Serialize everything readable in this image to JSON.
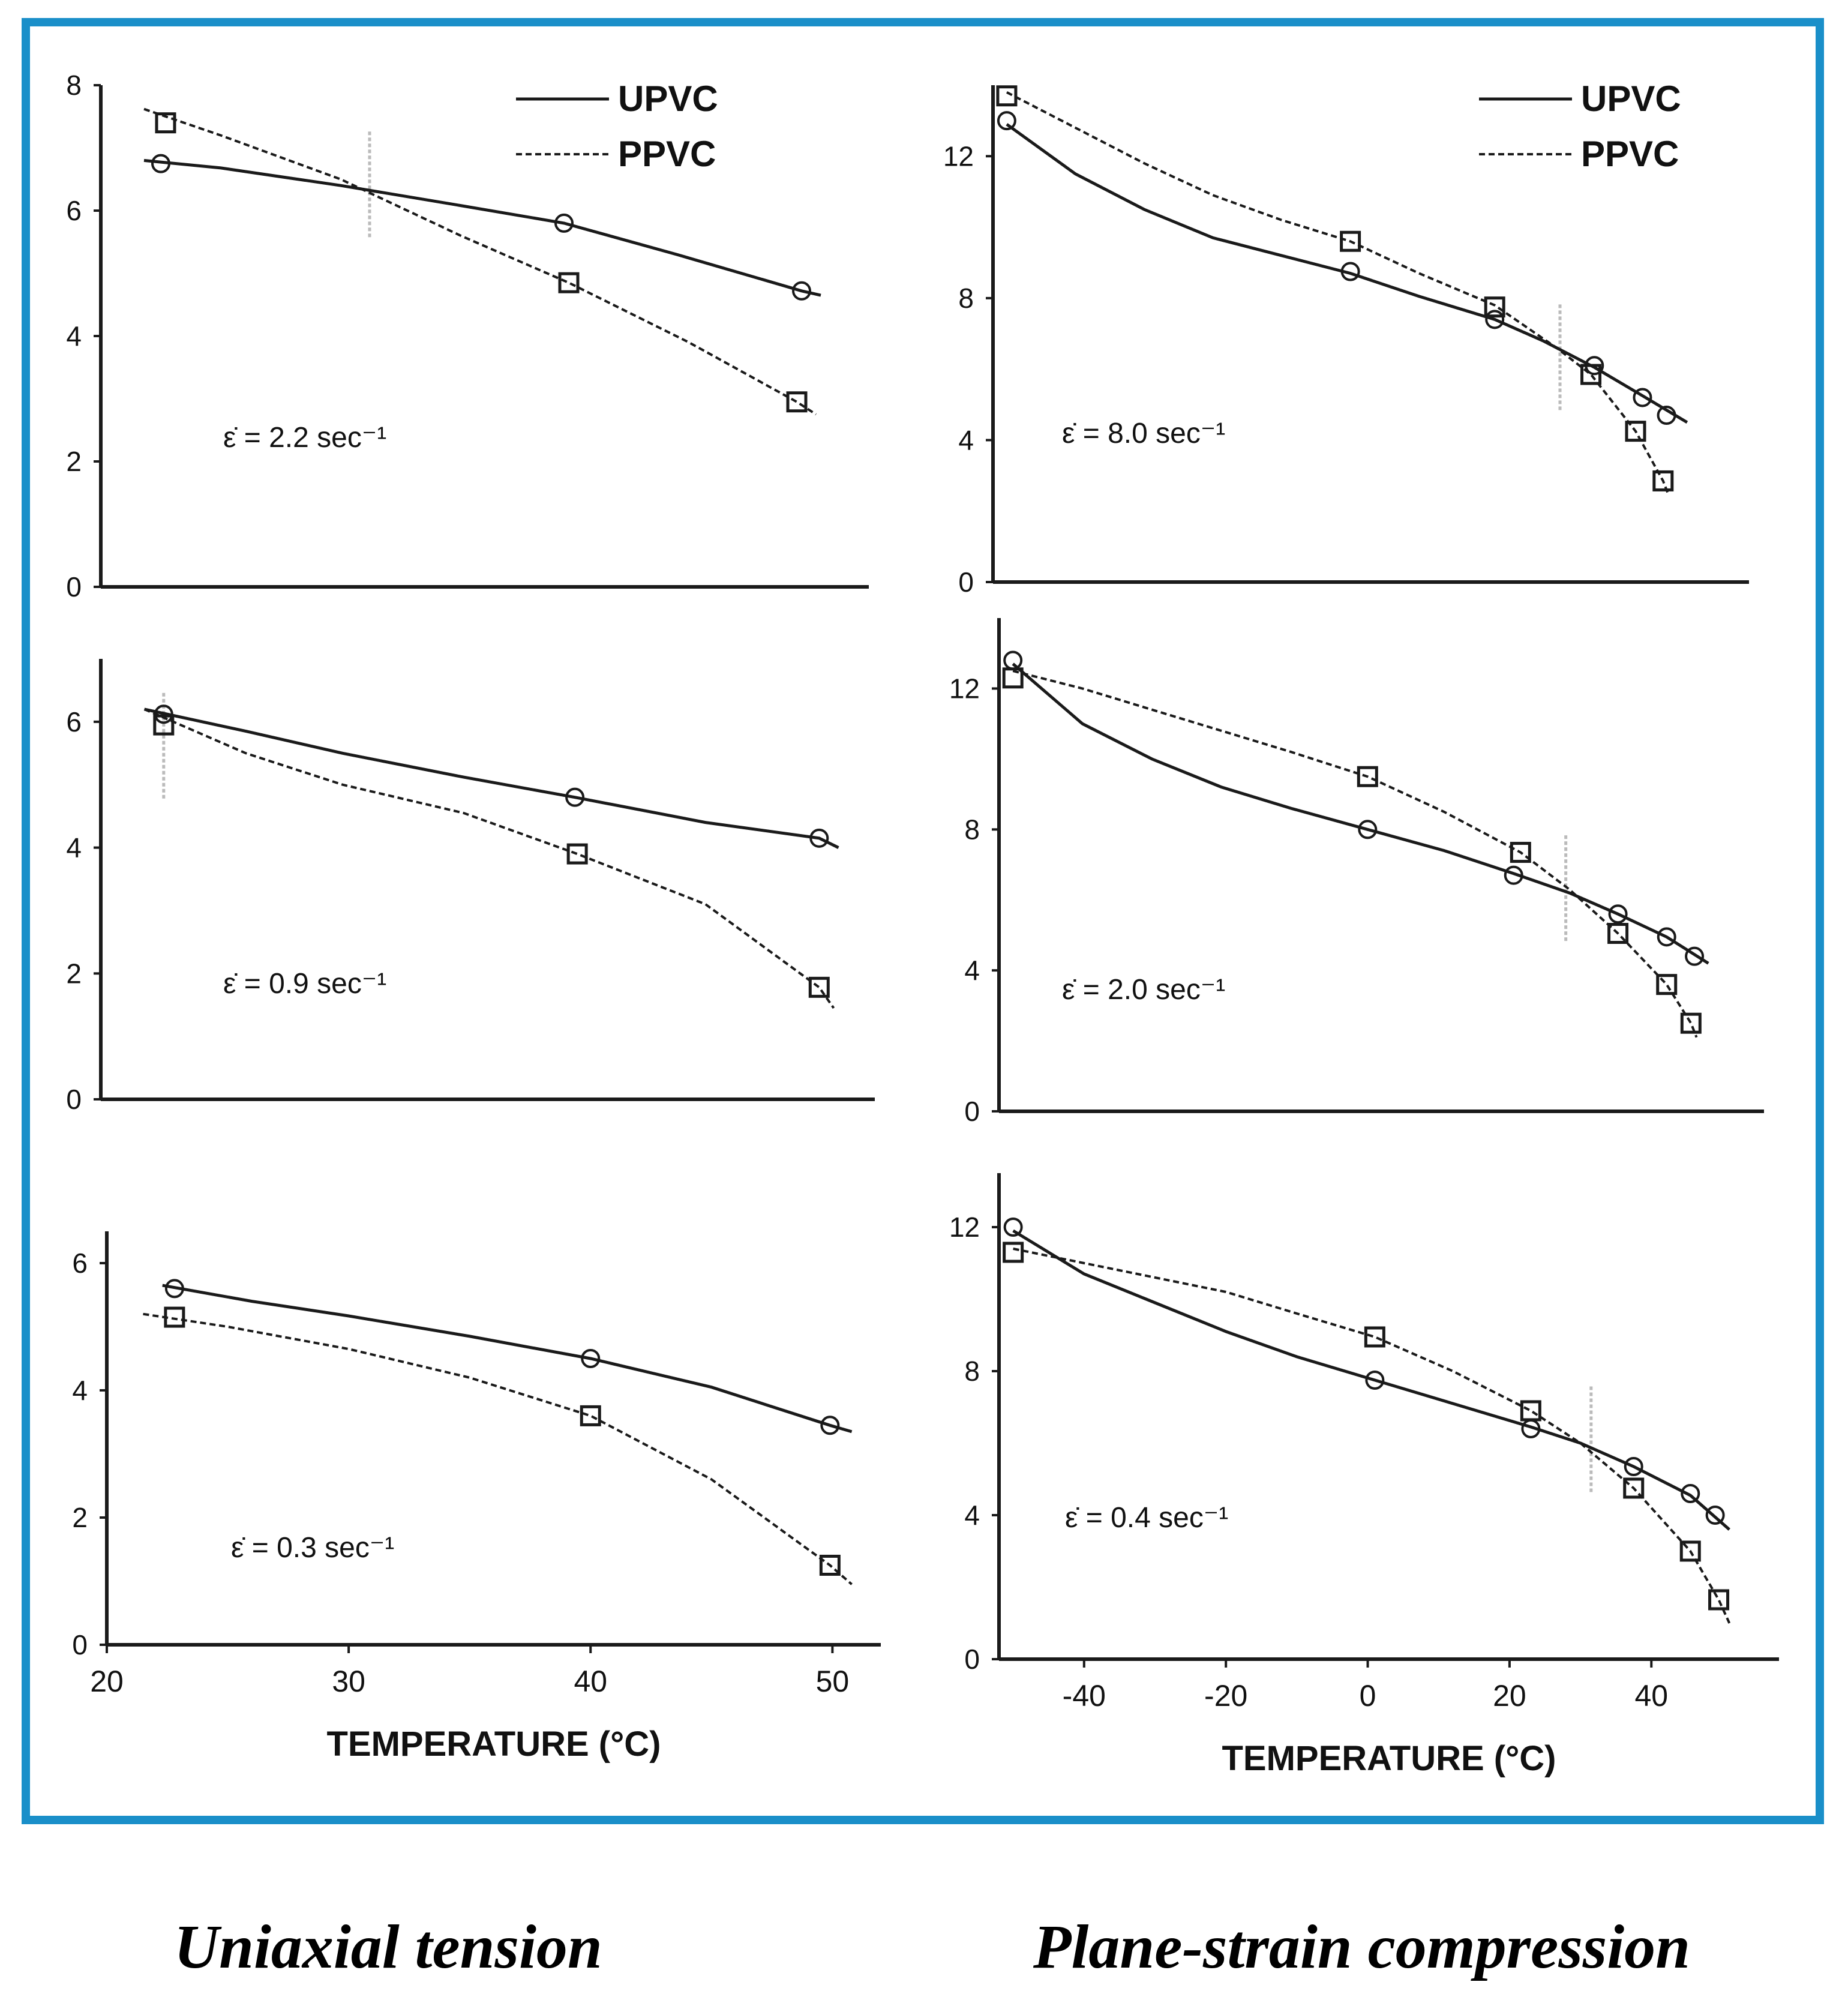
{
  "colors": {
    "border": "#1a8fc9",
    "line": "#1a1a1a",
    "divider": "#bbbbbb"
  },
  "legend": {
    "solid_label": "UPVC",
    "dashed_label": "PPVC"
  },
  "captions": {
    "left": "Uniaxial tension",
    "right": "Plane-strain compression"
  },
  "chart_data": [
    {
      "type": "line",
      "panel": "uniaxial-tension-2.2",
      "rate_label": "ε̇ = 2.2 sec⁻¹",
      "xlim": [
        20,
        52
      ],
      "ylim": [
        0,
        8
      ],
      "yticks": [
        0,
        2,
        4,
        6,
        8
      ],
      "xticks": [],
      "xlabel": "",
      "ylabel": "",
      "divider_x": 31.2,
      "series": [
        {
          "name": "UPVC",
          "style": "solid",
          "marker": "circle",
          "x": [
            22.5,
            39.3,
            49.2
          ],
          "y": [
            6.75,
            5.8,
            4.72
          ],
          "curve": [
            [
              21.8,
              6.8
            ],
            [
              25,
              6.68
            ],
            [
              30,
              6.4
            ],
            [
              35,
              6.08
            ],
            [
              39.3,
              5.8
            ],
            [
              44,
              5.3
            ],
            [
              49.2,
              4.72
            ],
            [
              50,
              4.65
            ]
          ]
        },
        {
          "name": "PPVC",
          "style": "dashed",
          "marker": "square",
          "x": [
            22.7,
            39.5,
            49
          ],
          "y": [
            7.4,
            4.85,
            2.95
          ],
          "curve": [
            [
              21.8,
              7.62
            ],
            [
              25,
              7.2
            ],
            [
              30,
              6.5
            ],
            [
              35,
              5.6
            ],
            [
              39.5,
              4.85
            ],
            [
              44.5,
              3.9
            ],
            [
              49,
              2.95
            ],
            [
              49.8,
              2.75
            ]
          ]
        }
      ]
    },
    {
      "type": "line",
      "panel": "uniaxial-tension-0.9",
      "rate_label": "ε̇ = 0.9 sec⁻¹",
      "xlim": [
        20,
        52
      ],
      "ylim": [
        0,
        7
      ],
      "yticks": [
        0,
        2,
        4,
        6
      ],
      "xticks": [],
      "xlabel": "",
      "ylabel": "",
      "divider_x": 22.6,
      "series": [
        {
          "name": "UPVC",
          "style": "solid",
          "marker": "circle",
          "x": [
            22.6,
            39.6,
            49.7
          ],
          "y": [
            6.12,
            4.8,
            4.15
          ],
          "curve": [
            [
              21.8,
              6.2
            ],
            [
              26,
              5.85
            ],
            [
              30,
              5.5
            ],
            [
              35,
              5.12
            ],
            [
              39.6,
              4.8
            ],
            [
              45,
              4.4
            ],
            [
              49.7,
              4.15
            ],
            [
              50.5,
              4.0
            ]
          ]
        },
        {
          "name": "PPVC",
          "style": "dashed",
          "marker": "square",
          "x": [
            22.6,
            39.7,
            49.7
          ],
          "y": [
            5.95,
            3.9,
            1.78
          ],
          "curve": [
            [
              21.8,
              6.2
            ],
            [
              26,
              5.5
            ],
            [
              30,
              5.0
            ],
            [
              35,
              4.55
            ],
            [
              39.7,
              3.9
            ],
            [
              45,
              3.1
            ],
            [
              49.7,
              1.78
            ],
            [
              50.3,
              1.45
            ]
          ]
        }
      ]
    },
    {
      "type": "line",
      "panel": "uniaxial-tension-0.3",
      "rate_label": "ε̇ = 0.3 sec⁻¹",
      "xlim": [
        20,
        52
      ],
      "ylim": [
        0,
        6.5
      ],
      "yticks": [
        0,
        2,
        4,
        6
      ],
      "xticks": [
        20,
        30,
        40,
        50
      ],
      "xlabel": "TEMPERATURE (°C)",
      "ylabel": "",
      "series": [
        {
          "name": "UPVC",
          "style": "solid",
          "marker": "circle",
          "x": [
            22.8,
            40,
            49.9
          ],
          "y": [
            5.6,
            4.5,
            3.45
          ],
          "curve": [
            [
              22.3,
              5.65
            ],
            [
              26,
              5.4
            ],
            [
              30,
              5.17
            ],
            [
              35,
              4.85
            ],
            [
              40,
              4.5
            ],
            [
              45,
              4.05
            ],
            [
              49.9,
              3.45
            ],
            [
              50.8,
              3.35
            ]
          ]
        },
        {
          "name": "PPVC",
          "style": "dashed",
          "marker": "square",
          "x": [
            22.8,
            40,
            49.9
          ],
          "y": [
            5.15,
            3.6,
            1.25
          ],
          "curve": [
            [
              21.5,
              5.2
            ],
            [
              25,
              5.0
            ],
            [
              30,
              4.65
            ],
            [
              35,
              4.2
            ],
            [
              40,
              3.6
            ],
            [
              45,
              2.6
            ],
            [
              49.9,
              1.25
            ],
            [
              50.8,
              0.95
            ]
          ]
        }
      ]
    },
    {
      "type": "line",
      "panel": "plane-strain-compression-8.0",
      "rate_label": "ε̇ = 8.0 sec⁻¹",
      "xlim": [
        -52,
        58
      ],
      "ylim": [
        0,
        14
      ],
      "yticks": [
        0,
        4,
        8,
        12
      ],
      "xticks": [],
      "xlabel": "",
      "ylabel": "",
      "divider_x": 30.5,
      "series": [
        {
          "name": "UPVC",
          "style": "solid",
          "marker": "circle",
          "x": [
            -50,
            0,
            21,
            35.5,
            42.5,
            46
          ],
          "y": [
            13.0,
            8.75,
            7.4,
            6.1,
            5.2,
            4.7
          ],
          "curve": [
            [
              -50,
              12.9
            ],
            [
              -40,
              11.5
            ],
            [
              -30,
              10.5
            ],
            [
              -20,
              9.7
            ],
            [
              -10,
              9.2
            ],
            [
              0,
              8.7
            ],
            [
              10,
              8.05
            ],
            [
              21,
              7.4
            ],
            [
              28,
              6.8
            ],
            [
              35.5,
              6.05
            ],
            [
              42.5,
              5.25
            ],
            [
              49,
              4.5
            ]
          ]
        },
        {
          "name": "PPVC",
          "style": "dashed",
          "marker": "square",
          "x": [
            -50,
            0,
            21,
            35,
            41.5,
            45.5
          ],
          "y": [
            13.7,
            9.6,
            7.75,
            5.85,
            4.25,
            2.85
          ],
          "curve": [
            [
              -50,
              13.8
            ],
            [
              -40,
              12.8
            ],
            [
              -30,
              11.8
            ],
            [
              -20,
              10.9
            ],
            [
              -10,
              10.2
            ],
            [
              0,
              9.6
            ],
            [
              10,
              8.7
            ],
            [
              21,
              7.8
            ],
            [
              30,
              6.6
            ],
            [
              35,
              5.85
            ],
            [
              41.5,
              4.25
            ],
            [
              45.5,
              2.85
            ],
            [
              46.2,
              2.5
            ]
          ]
        }
      ]
    },
    {
      "type": "line",
      "panel": "plane-strain-compression-2.0",
      "rate_label": "ε̇ = 2.0 sec⁻¹",
      "xlim": [
        -52,
        58
      ],
      "ylim": [
        0,
        14
      ],
      "yticks": [
        0,
        4,
        8,
        12
      ],
      "xticks": [],
      "xlabel": "",
      "ylabel": "",
      "divider_x": 29.5,
      "series": [
        {
          "name": "UPVC",
          "style": "solid",
          "marker": "circle",
          "x": [
            -50,
            1,
            22,
            37,
            44,
            48
          ],
          "y": [
            12.8,
            8.0,
            6.7,
            5.6,
            4.95,
            4.4
          ],
          "curve": [
            [
              -50,
              12.7
            ],
            [
              -40,
              11.0
            ],
            [
              -30,
              10.0
            ],
            [
              -20,
              9.2
            ],
            [
              -10,
              8.6
            ],
            [
              1,
              8.0
            ],
            [
              12,
              7.4
            ],
            [
              22,
              6.75
            ],
            [
              30,
              6.2
            ],
            [
              37,
              5.6
            ],
            [
              44,
              4.95
            ],
            [
              50,
              4.2
            ]
          ]
        },
        {
          "name": "PPVC",
          "style": "dashed",
          "marker": "square",
          "x": [
            -50,
            1,
            23,
            37,
            44,
            47.5
          ],
          "y": [
            12.3,
            9.5,
            7.35,
            5.05,
            3.6,
            2.5
          ],
          "curve": [
            [
              -50,
              12.5
            ],
            [
              -40,
              12.0
            ],
            [
              -30,
              11.4
            ],
            [
              -20,
              10.8
            ],
            [
              -10,
              10.2
            ],
            [
              1,
              9.5
            ],
            [
              12,
              8.5
            ],
            [
              23,
              7.35
            ],
            [
              30,
              6.3
            ],
            [
              37,
              5.05
            ],
            [
              44,
              3.6
            ],
            [
              47.5,
              2.5
            ],
            [
              48.3,
              2.1
            ]
          ]
        }
      ]
    },
    {
      "type": "line",
      "panel": "plane-strain-compression-0.4",
      "rate_label": "ε̇ = 0.4 sec⁻¹",
      "xlim": [
        -52,
        58
      ],
      "ylim": [
        0,
        13.5
      ],
      "yticks": [
        0,
        4,
        8,
        12
      ],
      "xticks": [
        -40,
        -20,
        0,
        20,
        40
      ],
      "xlabel": "TEMPERATURE (°C)",
      "ylabel": "",
      "divider_x": 31.5,
      "series": [
        {
          "name": "UPVC",
          "style": "solid",
          "marker": "circle",
          "x": [
            -50,
            1,
            23,
            37.5,
            45.5,
            49
          ],
          "y": [
            12.0,
            7.75,
            6.4,
            5.35,
            4.6,
            4.0
          ],
          "curve": [
            [
              -50,
              11.9
            ],
            [
              -40,
              10.7
            ],
            [
              -30,
              9.9
            ],
            [
              -20,
              9.1
            ],
            [
              -10,
              8.4
            ],
            [
              1,
              7.75
            ],
            [
              12,
              7.1
            ],
            [
              23,
              6.45
            ],
            [
              30,
              6.0
            ],
            [
              37.5,
              5.35
            ],
            [
              45.5,
              4.55
            ],
            [
              51,
              3.6
            ]
          ]
        },
        {
          "name": "PPVC",
          "style": "dashed",
          "marker": "square",
          "x": [
            -50,
            1,
            23,
            37.5,
            45.5,
            49.5
          ],
          "y": [
            11.3,
            8.95,
            6.9,
            4.75,
            3.0,
            1.65
          ],
          "curve": [
            [
              -50,
              11.4
            ],
            [
              -40,
              11.0
            ],
            [
              -30,
              10.6
            ],
            [
              -20,
              10.2
            ],
            [
              -10,
              9.6
            ],
            [
              1,
              8.95
            ],
            [
              12,
              8.0
            ],
            [
              23,
              6.9
            ],
            [
              30,
              6.0
            ],
            [
              37.5,
              4.75
            ],
            [
              45.5,
              3.0
            ],
            [
              49.5,
              1.65
            ],
            [
              51,
              1.0
            ]
          ]
        }
      ]
    }
  ]
}
